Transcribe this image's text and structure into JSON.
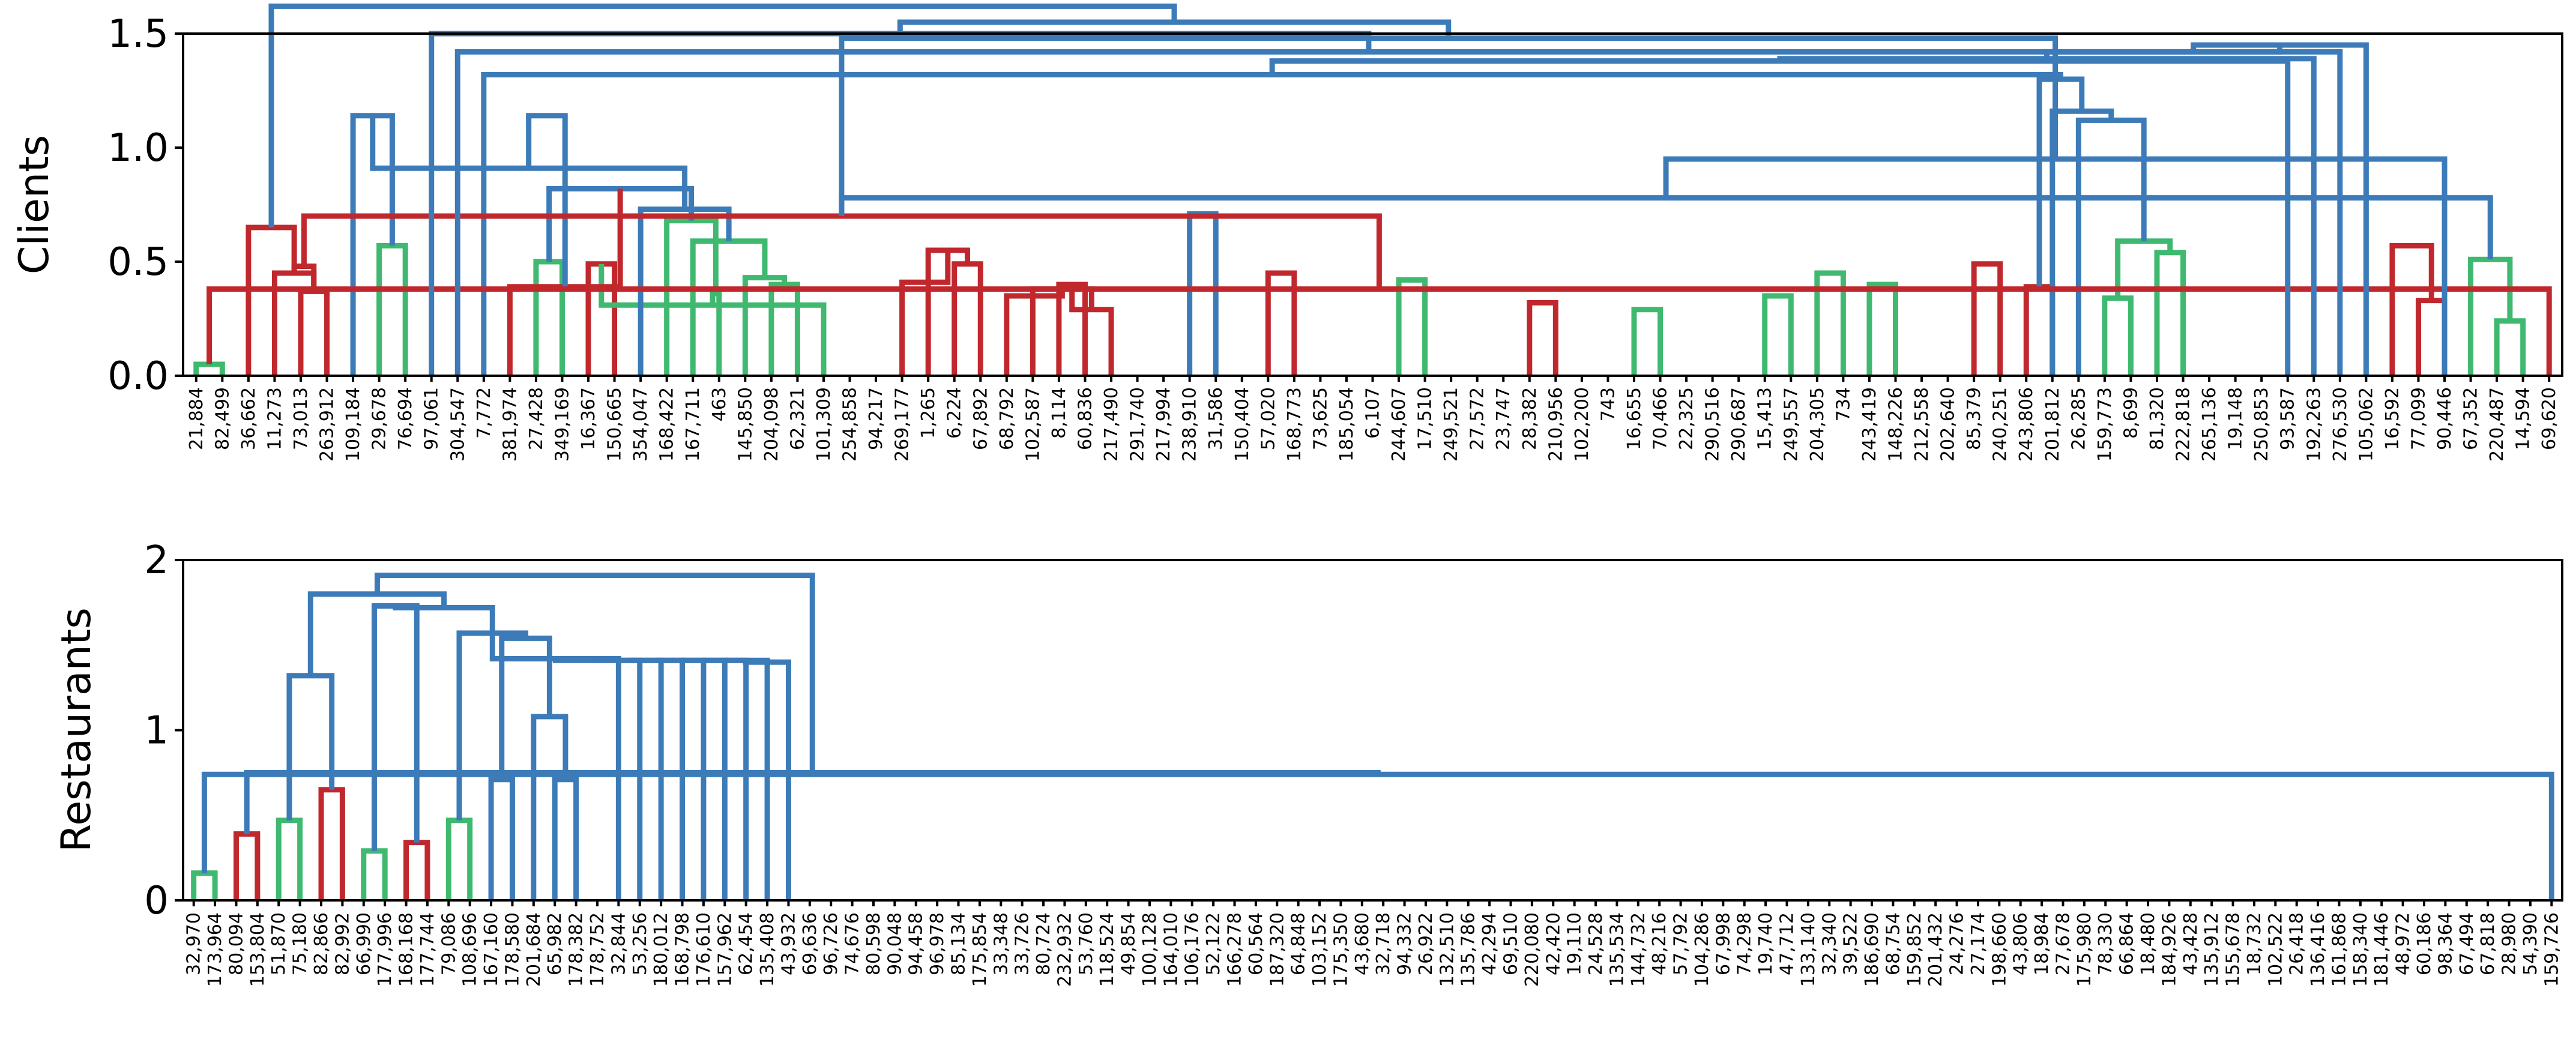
{
  "colors": {
    "above_threshold": "#3c7bb8",
    "cluster_red": "#c0282d",
    "cluster_green": "#3fb96f",
    "axis": "#000000"
  },
  "chart_data": [
    {
      "type": "dendrogram",
      "ylabel": "Clients",
      "ylim": [
        0,
        1.5
      ],
      "yticks": [
        0.0,
        0.5,
        1.0,
        1.5
      ],
      "ytick_labels": [
        "0.0",
        "0.5",
        "1.0",
        "1.5"
      ],
      "leaves": [
        "21,884",
        "82,499",
        "36,662",
        "11,273",
        "73,013",
        "263,912",
        "109,184",
        "29,678",
        "76,694",
        "97,061",
        "304,547",
        "7,772",
        "381,974",
        "27,428",
        "349,169",
        "16,367",
        "150,665",
        "354,047",
        "168,422",
        "167,711",
        "463",
        "145,850",
        "204,098",
        "62,321",
        "101,309",
        "254,858",
        "94,217",
        "269,177",
        "1,265",
        "6,224",
        "67,892",
        "68,792",
        "102,587",
        "8,114",
        "60,836",
        "217,490",
        "291,740",
        "217,994",
        "238,910",
        "31,586",
        "150,404",
        "57,020",
        "168,773",
        "73,625",
        "185,054",
        "6,107",
        "244,607",
        "17,510",
        "249,521",
        "27,572",
        "23,747",
        "28,382",
        "210,956",
        "102,200",
        "743",
        "16,655",
        "70,466",
        "22,325",
        "290,516",
        "290,687",
        "15,413",
        "249,557",
        "204,305",
        "734",
        "243,419",
        "148,226",
        "212,558",
        "202,640",
        "85,379",
        "240,251",
        "243,806",
        "201,812",
        "26,285",
        "159,773",
        "8,699",
        "81,320",
        "222,818",
        "265,136",
        "19,148",
        "250,853",
        "93,587",
        "192,263",
        "276,530",
        "105,062",
        "16,592",
        "77,099",
        "90,446",
        "67,352",
        "220,487",
        "14,594",
        "69,620"
      ],
      "merges": [
        [
          0,
          1,
          0.05,
          "G"
        ],
        [
          4,
          5,
          0.37,
          "R"
        ],
        [
          3,
          92,
          0.45,
          "R"
        ],
        [
          2,
          93,
          0.65,
          "R"
        ],
        [
          7,
          8,
          0.57,
          "G"
        ],
        [
          6,
          95,
          1.14,
          "B"
        ],
        [
          13,
          14,
          0.5,
          "G"
        ],
        [
          15,
          16,
          0.49,
          "R"
        ],
        [
          22,
          23,
          0.4,
          "G"
        ],
        [
          24,
          98,
          0.31,
          "G"
        ],
        [
          21,
          99,
          0.43,
          "G"
        ],
        [
          20,
          100,
          0.36,
          "G"
        ],
        [
          19,
          101,
          0.59,
          "G"
        ],
        [
          18,
          102,
          0.68,
          "G"
        ],
        [
          17,
          103,
          0.73,
          "B"
        ],
        [
          97,
          104,
          0.82,
          "B"
        ],
        [
          96,
          105,
          0.91,
          "B"
        ],
        [
          12,
          106,
          0.39,
          "R"
        ],
        [
          107,
          108,
          1.14,
          "B"
        ],
        [
          29,
          30,
          0.49,
          "R"
        ],
        [
          28,
          110,
          0.55,
          "R"
        ],
        [
          27,
          111,
          0.41,
          "R"
        ],
        [
          33,
          34,
          0.4,
          "R"
        ],
        [
          35,
          113,
          0.29,
          "R"
        ],
        [
          32,
          114,
          0.38,
          "R"
        ],
        [
          31,
          115,
          0.35,
          "R"
        ],
        [
          116,
          117,
          0.54,
          "R"
        ],
        [
          112,
          118,
          0.65,
          "R"
        ],
        [
          26,
          119,
          0.8,
          "B"
        ],
        [
          38,
          39,
          0.71,
          "B"
        ],
        [
          37,
          121,
          0.92,
          "B"
        ],
        [
          36,
          122,
          0.53,
          "G"
        ],
        [
          46,
          47,
          0.42,
          "G"
        ],
        [
          45,
          125,
          0.39,
          "G"
        ],
        [
          44,
          126,
          0.84,
          "B"
        ],
        [
          43,
          127,
          0.91,
          "B"
        ],
        [
          41,
          42,
          0.45,
          "R"
        ],
        [
          128,
          129,
          1.07,
          "B"
        ],
        [
          60,
          61,
          0.35,
          "G"
        ],
        [
          59,
          130,
          0.39,
          "G"
        ],
        [
          62,
          63,
          0.45,
          "G"
        ],
        [
          64,
          65,
          0.4,
          "G"
        ],
        [
          132,
          133,
          0.46,
          "G"
        ],
        [
          131,
          134,
          0.53,
          "G"
        ],
        [
          58,
          135,
          0.42,
          "G"
        ],
        [
          57,
          136,
          0.61,
          "G"
        ],
        [
          55,
          56,
          0.29,
          "G"
        ],
        [
          137,
          138,
          0.68,
          "G"
        ],
        [
          54,
          139,
          0.68,
          "G"
        ],
        [
          53,
          140,
          0.84,
          "B"
        ],
        [
          51,
          52,
          0.32,
          "R"
        ],
        [
          141,
          142,
          0.86,
          "B"
        ],
        [
          50,
          143,
          0.93,
          "B"
        ],
        [
          49,
          144,
          1.0,
          "B"
        ],
        [
          48,
          145,
          1.08,
          "B"
        ],
        [
          124,
          146,
          1.1,
          "B"
        ],
        [
          123,
          147,
          1.16,
          "B"
        ],
        [
          120,
          148,
          1.18,
          "B"
        ],
        [
          109,
          149,
          1.21,
          "B"
        ],
        [
          68,
          69,
          0.49,
          "R"
        ],
        [
          70,
          71,
          0.39,
          "R"
        ],
        [
          73,
          74,
          0.34,
          "G"
        ],
        [
          75,
          76,
          0.54,
          "G"
        ],
        [
          152,
          153,
          0.59,
          "G"
        ],
        [
          72,
          154,
          1.12,
          "B"
        ],
        [
          71,
          155,
          1.16,
          "B"
        ],
        [
          151,
          156,
          1.3,
          "B"
        ],
        [
          11,
          157,
          1.32,
          "B"
        ],
        [
          85,
          86,
          0.33,
          "R"
        ],
        [
          84,
          159,
          0.57,
          "R"
        ],
        [
          88,
          89,
          0.24,
          "G"
        ],
        [
          87,
          161,
          0.51,
          "G"
        ],
        [
          90,
          91,
          0.38,
          "R"
        ],
        [
          92,
          93,
          0.48,
          "R"
        ],
        [
          163,
          164,
          0.7,
          "R"
        ],
        [
          162,
          165,
          0.78,
          "B"
        ],
        [
          86,
          166,
          0.95,
          "B"
        ],
        [
          165,
          167,
          1.48,
          "B"
        ],
        [
          158,
          80,
          1.38,
          "B"
        ],
        [
          169,
          81,
          1.39,
          "B"
        ],
        [
          170,
          82,
          1.42,
          "B"
        ],
        [
          171,
          83,
          1.45,
          "B"
        ],
        [
          172,
          10,
          1.42,
          "B"
        ],
        [
          173,
          9,
          1.5,
          "B"
        ],
        [
          174,
          168,
          1.55,
          "B"
        ],
        [
          94,
          175,
          1.62,
          "B"
        ]
      ]
    },
    {
      "type": "dendrogram",
      "ylabel": "Restaurants",
      "ylim": [
        0,
        2
      ],
      "yticks": [
        0,
        1,
        2
      ],
      "ytick_labels": [
        "0",
        "1",
        "2"
      ],
      "leaves": [
        "32,970",
        "173,964",
        "80,094",
        "153,804",
        "51,870",
        "75,180",
        "82,866",
        "82,992",
        "66,990",
        "177,996",
        "168,168",
        "177,744",
        "79,086",
        "108,696",
        "167,160",
        "178,580",
        "201,684",
        "65,982",
        "178,382",
        "178,752",
        "32,844",
        "53,256",
        "180,012",
        "168,798",
        "176,610",
        "157,962",
        "62,454",
        "135,408",
        "43,932",
        "69,636",
        "96,726",
        "74,676",
        "80,598",
        "90,048",
        "94,458",
        "96,978",
        "85,134",
        "175,854",
        "33,348",
        "33,726",
        "80,724",
        "232,932",
        "53,760",
        "118,524",
        "49,854",
        "100,128",
        "164,010",
        "106,176",
        "52,122",
        "166,278",
        "60,564",
        "187,320",
        "64,848",
        "103,152",
        "175,350",
        "43,680",
        "32,718",
        "94,332",
        "26,922",
        "132,510",
        "135,786",
        "42,294",
        "69,510",
        "220,080",
        "42,420",
        "19,110",
        "24,528",
        "135,534",
        "144,732",
        "48,216",
        "57,792",
        "104,286",
        "67,998",
        "74,298",
        "19,740",
        "47,712",
        "133,140",
        "32,340",
        "39,522",
        "186,690",
        "68,754",
        "159,852",
        "201,432",
        "24,276",
        "27,174",
        "198,660",
        "43,806",
        "18,984",
        "27,678",
        "175,980",
        "78,330",
        "66,864",
        "18,480",
        "184,926",
        "43,428",
        "135,912",
        "155,678",
        "18,732",
        "102,522",
        "26,418",
        "136,416",
        "161,868",
        "158,340",
        "181,446",
        "48,972",
        "60,186",
        "98,364",
        "67,494",
        "67,818",
        "28,980",
        "54,390",
        "159,726"
      ],
      "merges": [
        [
          0,
          1,
          0.16,
          "G"
        ],
        [
          2,
          3,
          0.39,
          "R"
        ],
        [
          111,
          112,
          0.74,
          "B"
        ],
        [
          113,
          114,
          0.75,
          "B"
        ],
        [
          4,
          5,
          0.47,
          "G"
        ],
        [
          6,
          7,
          0.65,
          "R"
        ],
        [
          116,
          117,
          1.32,
          "B"
        ],
        [
          8,
          9,
          0.29,
          "G"
        ],
        [
          10,
          11,
          0.34,
          "R"
        ],
        [
          119,
          120,
          1.73,
          "B"
        ],
        [
          12,
          13,
          0.47,
          "G"
        ],
        [
          14,
          15,
          0.71,
          "B"
        ],
        [
          17,
          18,
          0.71,
          "B"
        ],
        [
          16,
          124,
          1.08,
          "B"
        ],
        [
          123,
          125,
          1.54,
          "B"
        ],
        [
          122,
          126,
          1.57,
          "B"
        ],
        [
          121,
          127,
          1.72,
          "B"
        ],
        [
          118,
          128,
          1.8,
          "B"
        ],
        [
          115,
          129,
          1.91,
          "B"
        ],
        [
          127,
          20,
          1.42,
          "B"
        ],
        [
          131,
          21,
          1.41,
          "B"
        ],
        [
          132,
          22,
          1.41,
          "B"
        ],
        [
          133,
          23,
          1.41,
          "B"
        ],
        [
          134,
          24,
          1.41,
          "B"
        ],
        [
          135,
          25,
          1.41,
          "B"
        ],
        [
          136,
          26,
          1.41,
          "B"
        ],
        [
          137,
          27,
          1.41,
          "B"
        ],
        [
          138,
          28,
          1.4,
          "B"
        ]
      ]
    }
  ]
}
